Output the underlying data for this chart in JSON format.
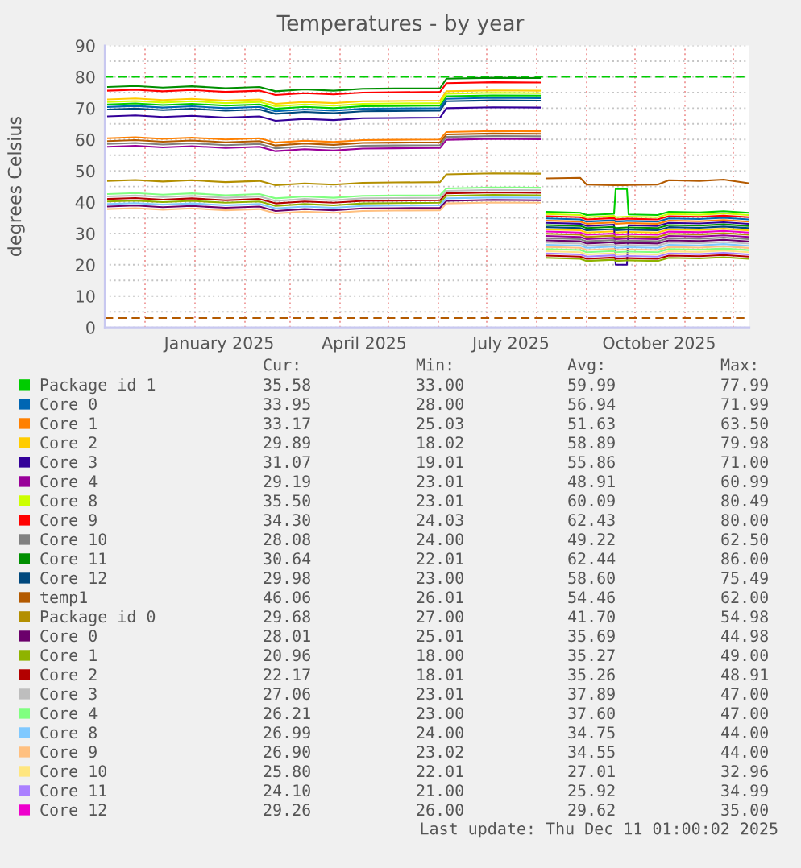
{
  "chart_data": {
    "type": "line",
    "title": "Temperatures - by year",
    "ylabel": "degrees Celsius",
    "x": [
      "2024-11-08",
      "2024-11-25",
      "2024-12-12",
      "2024-12-30",
      "2025-01-20",
      "2025-02-10",
      "2025-02-20",
      "2025-03-10",
      "2025-03-28",
      "2025-04-15",
      "2025-05-05",
      "2025-06-02",
      "2025-06-06",
      "2025-07-05",
      "2025-08-03",
      "2025-08-05",
      "2025-08-07",
      "2025-08-28",
      "2025-09-01",
      "2025-09-18",
      "2025-09-19",
      "2025-09-26",
      "2025-09-27",
      "2025-10-15",
      "2025-10-22",
      "2025-11-10",
      "2025-11-25",
      "2025-12-10"
    ],
    "series": [
      {
        "name": "Package id 1",
        "color": "#00cc00",
        "values": [
          71.2,
          71.5,
          71.0,
          71.4,
          70.8,
          71.2,
          69.8,
          70.4,
          70.0,
          70.6,
          70.7,
          70.8,
          73.8,
          74.1,
          74.0,
          null,
          36.9,
          36.6,
          35.9,
          36.3,
          44.2,
          44.2,
          36.1,
          35.9,
          36.9,
          36.7,
          37.1,
          36.6
        ]
      },
      {
        "name": "Core 0",
        "color": "#0066b3",
        "values": [
          70.4,
          70.7,
          70.2,
          70.6,
          70.0,
          70.4,
          69.0,
          69.6,
          69.2,
          69.8,
          69.9,
          70.0,
          73.0,
          73.3,
          73.2,
          null,
          34.8,
          34.5,
          33.8,
          34.2,
          33.8,
          34.0,
          34.0,
          33.8,
          34.8,
          34.6,
          35.0,
          34.5
        ]
      },
      {
        "name": "Core 1",
        "color": "#ff8000",
        "values": [
          60.4,
          60.7,
          60.2,
          60.6,
          60.0,
          60.4,
          59.0,
          59.6,
          59.2,
          59.8,
          59.9,
          60.0,
          62.4,
          62.7,
          62.6,
          null,
          34.1,
          33.8,
          33.1,
          33.5,
          33.1,
          33.3,
          33.3,
          33.1,
          34.1,
          33.9,
          34.3,
          33.8
        ]
      },
      {
        "name": "Core 2",
        "color": "#ffcc00",
        "values": [
          72.8,
          73.1,
          72.6,
          73.0,
          72.4,
          72.8,
          71.4,
          72.0,
          71.6,
          72.2,
          72.3,
          72.4,
          75.4,
          75.7,
          75.6,
          null,
          31.3,
          31.0,
          30.3,
          30.7,
          30.3,
          30.5,
          30.5,
          30.3,
          31.3,
          31.1,
          31.5,
          31.0
        ]
      },
      {
        "name": "Core 3",
        "color": "#330099",
        "values": [
          67.4,
          67.7,
          67.2,
          67.6,
          67.0,
          67.4,
          66.0,
          66.6,
          66.2,
          66.8,
          66.9,
          67.0,
          70.0,
          70.3,
          70.2,
          null,
          33.4,
          33.1,
          32.4,
          32.8,
          20.0,
          20.0,
          32.6,
          32.4,
          33.4,
          33.2,
          33.6,
          33.1
        ]
      },
      {
        "name": "Core 4",
        "color": "#990099",
        "values": [
          57.7,
          58.0,
          57.5,
          57.9,
          57.3,
          57.7,
          56.3,
          56.9,
          56.5,
          57.1,
          57.2,
          57.3,
          59.9,
          60.2,
          60.1,
          null,
          29.2,
          28.9,
          28.2,
          28.6,
          28.2,
          28.4,
          28.4,
          28.2,
          29.2,
          29.0,
          29.4,
          28.9
        ]
      },
      {
        "name": "Core 8",
        "color": "#ccff00",
        "values": [
          72.0,
          72.3,
          71.8,
          72.2,
          71.6,
          72.0,
          70.6,
          71.2,
          70.8,
          71.4,
          71.5,
          71.6,
          74.6,
          74.9,
          74.8,
          null,
          36.2,
          35.9,
          35.2,
          35.6,
          35.2,
          35.4,
          35.4,
          35.2,
          36.2,
          36.0,
          36.4,
          35.9
        ]
      },
      {
        "name": "Core 9",
        "color": "#ff0000",
        "values": [
          75.6,
          75.9,
          75.4,
          75.8,
          75.2,
          75.6,
          74.2,
          74.8,
          74.4,
          75.0,
          75.1,
          75.2,
          78.0,
          78.3,
          78.2,
          null,
          35.5,
          35.2,
          34.5,
          34.9,
          34.5,
          34.7,
          34.7,
          34.5,
          35.5,
          35.3,
          35.7,
          35.2
        ]
      },
      {
        "name": "Core 10",
        "color": "#808080",
        "values": [
          58.6,
          58.9,
          58.4,
          58.8,
          58.2,
          58.6,
          57.2,
          57.8,
          57.4,
          58.0,
          58.1,
          58.2,
          60.8,
          61.1,
          61.0,
          null,
          28.5,
          28.2,
          27.5,
          27.9,
          27.5,
          27.7,
          27.7,
          27.5,
          28.5,
          28.3,
          28.7,
          28.2
        ]
      },
      {
        "name": "Core 11",
        "color": "#008f00",
        "values": [
          76.8,
          77.1,
          76.6,
          77.0,
          76.4,
          76.8,
          75.4,
          76.0,
          75.6,
          76.2,
          76.3,
          76.4,
          79.4,
          79.7,
          79.6,
          null,
          32.7,
          32.4,
          31.7,
          32.1,
          31.7,
          31.9,
          31.9,
          31.7,
          32.7,
          32.5,
          32.9,
          32.4
        ]
      },
      {
        "name": "Core 12",
        "color": "#00487d",
        "values": [
          69.6,
          69.9,
          69.4,
          69.8,
          69.2,
          69.6,
          68.2,
          68.8,
          68.4,
          69.0,
          69.1,
          69.2,
          72.2,
          72.5,
          72.4,
          null,
          32.0,
          31.7,
          31.0,
          31.4,
          31.0,
          31.2,
          31.2,
          31.0,
          32.0,
          31.8,
          32.2,
          31.7
        ]
      },
      {
        "name": "temp1",
        "color": "#b35a00",
        "values": [
          59.5,
          59.8,
          59.3,
          59.7,
          59.1,
          59.5,
          58.1,
          58.7,
          58.3,
          58.9,
          59.0,
          59.1,
          61.6,
          61.9,
          61.8,
          null,
          47.6,
          47.8,
          45.6,
          45.4,
          45.4,
          45.4,
          45.5,
          45.6,
          47.0,
          46.8,
          47.2,
          46.1
        ]
      },
      {
        "name": "Package id 0",
        "color": "#b38f00",
        "values": [
          46.8,
          47.1,
          46.6,
          47.0,
          46.4,
          46.8,
          45.4,
          46.0,
          45.6,
          46.2,
          46.3,
          46.4,
          48.9,
          49.2,
          49.1,
          null,
          29.9,
          29.6,
          28.9,
          29.3,
          28.9,
          29.1,
          29.1,
          28.9,
          29.9,
          29.7,
          30.1,
          29.6
        ]
      },
      {
        "name": "Core 0",
        "color": "#6b006b",
        "values": [
          38.6,
          38.9,
          38.4,
          38.8,
          38.2,
          38.6,
          37.2,
          37.8,
          37.4,
          38.0,
          38.1,
          38.2,
          40.4,
          40.7,
          40.6,
          null,
          27.8,
          27.5,
          26.8,
          27.2,
          26.8,
          27.0,
          27.0,
          26.8,
          27.8,
          27.6,
          28.0,
          27.5
        ]
      },
      {
        "name": "Core 1",
        "color": "#8fb300",
        "values": [
          40.2,
          40.5,
          40.0,
          40.4,
          39.8,
          40.2,
          38.8,
          39.4,
          39.0,
          39.6,
          39.7,
          39.8,
          42.0,
          42.3,
          42.2,
          null,
          22.2,
          21.9,
          21.2,
          21.6,
          21.2,
          21.4,
          21.4,
          21.2,
          22.2,
          22.0,
          22.4,
          21.9
        ]
      },
      {
        "name": "Core 2",
        "color": "#b30000",
        "values": [
          41.0,
          41.3,
          40.8,
          41.2,
          40.6,
          41.0,
          39.6,
          40.2,
          39.8,
          40.4,
          40.5,
          40.6,
          42.8,
          43.1,
          43.0,
          null,
          22.9,
          22.6,
          21.9,
          22.3,
          21.9,
          22.1,
          22.1,
          21.9,
          22.9,
          22.7,
          23.1,
          22.6
        ]
      },
      {
        "name": "Core 3",
        "color": "#bebebe",
        "values": [
          41.8,
          42.1,
          41.6,
          42.0,
          41.4,
          41.8,
          40.4,
          41.0,
          40.6,
          41.2,
          41.3,
          41.4,
          43.6,
          43.9,
          43.8,
          null,
          27.1,
          26.8,
          26.1,
          26.5,
          26.1,
          26.3,
          26.3,
          26.1,
          27.1,
          26.9,
          27.3,
          26.8
        ]
      },
      {
        "name": "Core 4",
        "color": "#80ff80",
        "values": [
          42.6,
          42.9,
          42.4,
          42.8,
          42.2,
          42.6,
          41.2,
          41.8,
          41.4,
          42.0,
          42.1,
          42.2,
          44.4,
          44.7,
          44.6,
          null,
          25.0,
          24.7,
          24.0,
          24.4,
          24.0,
          24.2,
          24.2,
          24.0,
          25.0,
          24.8,
          25.2,
          24.7
        ]
      },
      {
        "name": "Core 8",
        "color": "#80c9ff",
        "values": [
          39.4,
          39.7,
          39.2,
          39.6,
          39.0,
          39.4,
          38.0,
          38.6,
          38.2,
          38.8,
          38.9,
          39.0,
          41.2,
          41.5,
          41.4,
          null,
          26.4,
          26.1,
          25.4,
          25.8,
          25.4,
          25.6,
          25.6,
          25.4,
          26.4,
          26.2,
          26.6,
          26.1
        ]
      },
      {
        "name": "Core 9",
        "color": "#ffc080",
        "values": [
          37.8,
          38.1,
          37.6,
          38.0,
          37.4,
          37.8,
          36.4,
          37.0,
          36.6,
          37.2,
          37.3,
          37.4,
          39.6,
          39.9,
          39.8,
          null,
          25.7,
          25.4,
          24.7,
          25.1,
          24.7,
          24.9,
          24.9,
          24.7,
          25.7,
          25.5,
          25.9,
          25.4
        ]
      },
      {
        "name": "Core 10",
        "color": "#ffe680",
        "values": [
          null,
          null,
          null,
          null,
          null,
          null,
          null,
          null,
          null,
          null,
          null,
          null,
          null,
          null,
          null,
          null,
          24.3,
          24.0,
          23.3,
          23.7,
          23.3,
          23.5,
          23.5,
          23.3,
          24.3,
          24.1,
          24.5,
          24.0
        ]
      },
      {
        "name": "Core 11",
        "color": "#aa80ff",
        "values": [
          null,
          null,
          null,
          null,
          null,
          null,
          null,
          null,
          null,
          null,
          null,
          null,
          null,
          null,
          null,
          null,
          23.6,
          23.3,
          22.6,
          23.0,
          22.6,
          22.8,
          22.8,
          22.6,
          23.6,
          23.4,
          23.8,
          23.3
        ]
      },
      {
        "name": "Core 12",
        "color": "#ee00cc",
        "values": [
          null,
          null,
          null,
          null,
          null,
          null,
          null,
          null,
          null,
          null,
          null,
          null,
          null,
          null,
          null,
          null,
          30.6,
          30.3,
          29.6,
          30.0,
          29.6,
          29.8,
          29.8,
          29.6,
          30.6,
          30.4,
          30.8,
          30.3
        ]
      }
    ],
    "xlim": [
      "2024-11-06",
      "2025-12-11"
    ],
    "xticks": [
      {
        "value": "2024-12-01",
        "label": null
      },
      {
        "value": "2025-01-01",
        "label": null
      },
      {
        "value": "2025-01-16",
        "label": "January 2025"
      },
      {
        "value": "2025-02-01",
        "label": null
      },
      {
        "value": "2025-03-01",
        "label": null
      },
      {
        "value": "2025-04-01",
        "label": null
      },
      {
        "value": "2025-04-16",
        "label": "April 2025"
      },
      {
        "value": "2025-05-01",
        "label": null
      },
      {
        "value": "2025-06-01",
        "label": null
      },
      {
        "value": "2025-07-01",
        "label": null
      },
      {
        "value": "2025-07-16",
        "label": "July 2025"
      },
      {
        "value": "2025-08-01",
        "label": null
      },
      {
        "value": "2025-09-01",
        "label": null
      },
      {
        "value": "2025-10-01",
        "label": null
      },
      {
        "value": "2025-10-16",
        "label": "October 2025"
      },
      {
        "value": "2025-11-01",
        "label": null
      },
      {
        "value": "2025-12-01",
        "label": null
      }
    ],
    "ylim": [
      0,
      90
    ],
    "yticks": [
      0,
      {
        "value": 5,
        "label": null
      },
      10,
      {
        "value": 15,
        "label": null
      },
      20,
      {
        "value": 25,
        "label": null
      },
      30,
      {
        "value": 35,
        "label": null
      },
      40,
      {
        "value": 45,
        "label": null
      },
      50,
      {
        "value": 55,
        "label": null
      },
      60,
      {
        "value": 65,
        "label": null
      },
      70,
      {
        "value": 75,
        "label": null
      },
      80,
      {
        "value": 85,
        "label": null
      },
      90
    ],
    "grid": true,
    "legend": "bottom",
    "ref_lines": [
      {
        "axis": "y",
        "value": 80,
        "color": "#00cc00",
        "line_style": "dashed"
      },
      {
        "axis": "y",
        "value": 3,
        "color": "#b35a00",
        "line_style": "dashed"
      }
    ],
    "annotations": [
      "Cur:",
      "Min:",
      "Avg:",
      "Max:",
      "35.58",
      "33.00",
      "59.99",
      "77.99",
      "33.95",
      "28.00",
      "56.94",
      "71.99",
      "33.17",
      "25.03",
      "51.63",
      "63.50",
      "29.89",
      "18.02",
      "58.89",
      "79.98",
      "31.07",
      "19.01",
      "55.86",
      "71.00",
      "29.19",
      "23.01",
      "48.91",
      "60.99",
      "35.50",
      "23.01",
      "60.09",
      "80.49",
      "34.30",
      "24.03",
      "62.43",
      "80.00",
      "28.08",
      "24.00",
      "49.22",
      "62.50",
      "30.64",
      "22.01",
      "62.44",
      "86.00",
      "29.98",
      "23.00",
      "58.60",
      "75.49",
      "46.06",
      "26.01",
      "54.46",
      "62.00",
      "29.68",
      "27.00",
      "41.70",
      "54.98",
      "28.01",
      "25.01",
      "35.69",
      "44.98",
      "20.96",
      "18.00",
      "35.27",
      "49.00",
      "22.17",
      "18.01",
      "35.26",
      "48.91",
      "27.06",
      "23.01",
      "37.89",
      "47.00",
      "26.21",
      "23.00",
      "37.60",
      "47.00",
      "26.99",
      "24.00",
      "34.75",
      "44.00",
      "26.90",
      "23.02",
      "34.55",
      "44.00",
      "25.80",
      "22.01",
      "27.01",
      "32.96",
      "24.10",
      "21.00",
      "25.92",
      "34.99",
      "29.26",
      "26.00",
      "29.62",
      "35.00",
      "Last update: Thu Dec 11 01:00:02 2025"
    ]
  }
}
